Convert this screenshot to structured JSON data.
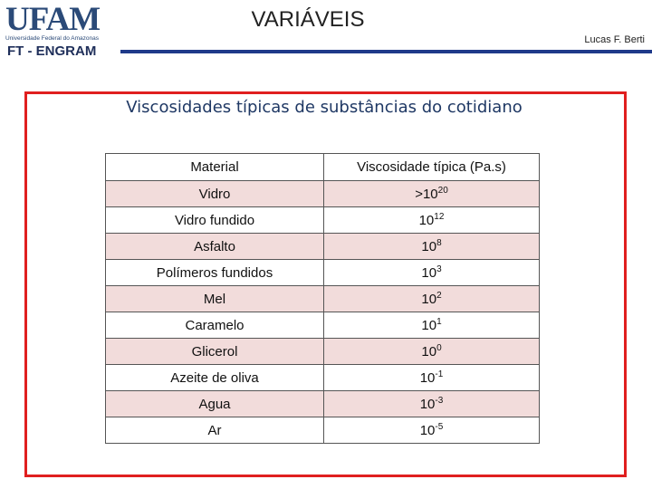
{
  "header": {
    "logo": "UFAM",
    "university": "Universidade Federal do Amazonas",
    "unit": "FT - ENGRAM",
    "title": "VARIÁVEIS",
    "author": "Lucas F. Berti"
  },
  "slide": {
    "subtitle": "Viscosidades típicas de substâncias do cotidiano"
  },
  "table": {
    "columns": [
      "Material",
      "Viscosidade típica (Pa.s)"
    ],
    "rows": [
      {
        "material": "Vidro",
        "value": ">10",
        "exp": "20"
      },
      {
        "material": "Vidro fundido",
        "value": "10",
        "exp": "12"
      },
      {
        "material": "Asfalto",
        "value": "10",
        "exp": "8"
      },
      {
        "material": "Polímeros fundidos",
        "value": "10",
        "exp": "3"
      },
      {
        "material": "Mel",
        "value": "10",
        "exp": "2"
      },
      {
        "material": "Caramelo",
        "value": "10",
        "exp": "1"
      },
      {
        "material": "Glicerol",
        "value": "10",
        "exp": "0"
      },
      {
        "material": "Azeite de oliva",
        "value": "10",
        "exp": "-1"
      },
      {
        "material": "Agua",
        "value": "10",
        "exp": "-3"
      },
      {
        "material": "Ar",
        "value": "10",
        "exp": "-5"
      }
    ]
  }
}
